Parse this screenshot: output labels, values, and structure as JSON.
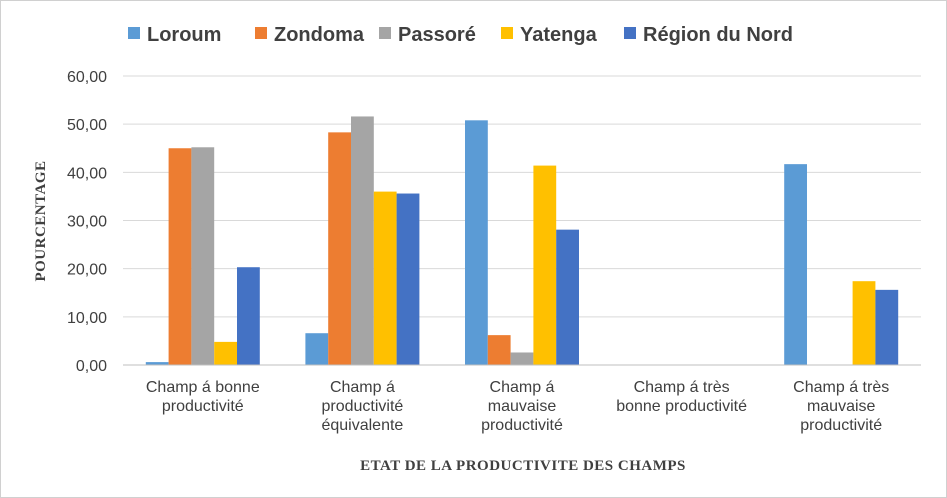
{
  "chart_data": {
    "type": "bar",
    "xlabel": "ETAT DE LA PRODUCTIVITE DES CHAMPS",
    "ylabel": "POURCENTAGE",
    "ylim": [
      0,
      60
    ],
    "yticks": [
      "0,00",
      "10,00",
      "20,00",
      "30,00",
      "40,00",
      "50,00",
      "60,00"
    ],
    "grid": true,
    "legend_position": "top",
    "categories": [
      [
        "Champ á bonne",
        "productivité"
      ],
      [
        "Champ á",
        "productivité",
        "équivalente"
      ],
      [
        "Champ á",
        "mauvaise",
        "productivité"
      ],
      [
        "Champ á très",
        "bonne productivité"
      ],
      [
        "Champ á très",
        "mauvaise",
        "productivité"
      ]
    ],
    "series": [
      {
        "name": "Loroum",
        "color": "#5B9BD5",
        "values": [
          0.6,
          6.6,
          50.8,
          0,
          41.7
        ]
      },
      {
        "name": "Zondoma",
        "color": "#ED7D31",
        "values": [
          45.0,
          48.3,
          6.2,
          0,
          0
        ]
      },
      {
        "name": "Passoré",
        "color": "#A5A5A5",
        "values": [
          45.2,
          51.6,
          2.6,
          0,
          0
        ]
      },
      {
        "name": "Yatenga",
        "color": "#FFC000",
        "values": [
          4.8,
          36.0,
          41.4,
          0,
          17.4
        ]
      },
      {
        "name": "Région du Nord",
        "color": "#4472C4",
        "values": [
          20.3,
          35.6,
          28.1,
          0,
          15.6
        ]
      }
    ],
    "colors": {
      "grid": "#d9d9d9",
      "text": "#404040"
    }
  }
}
